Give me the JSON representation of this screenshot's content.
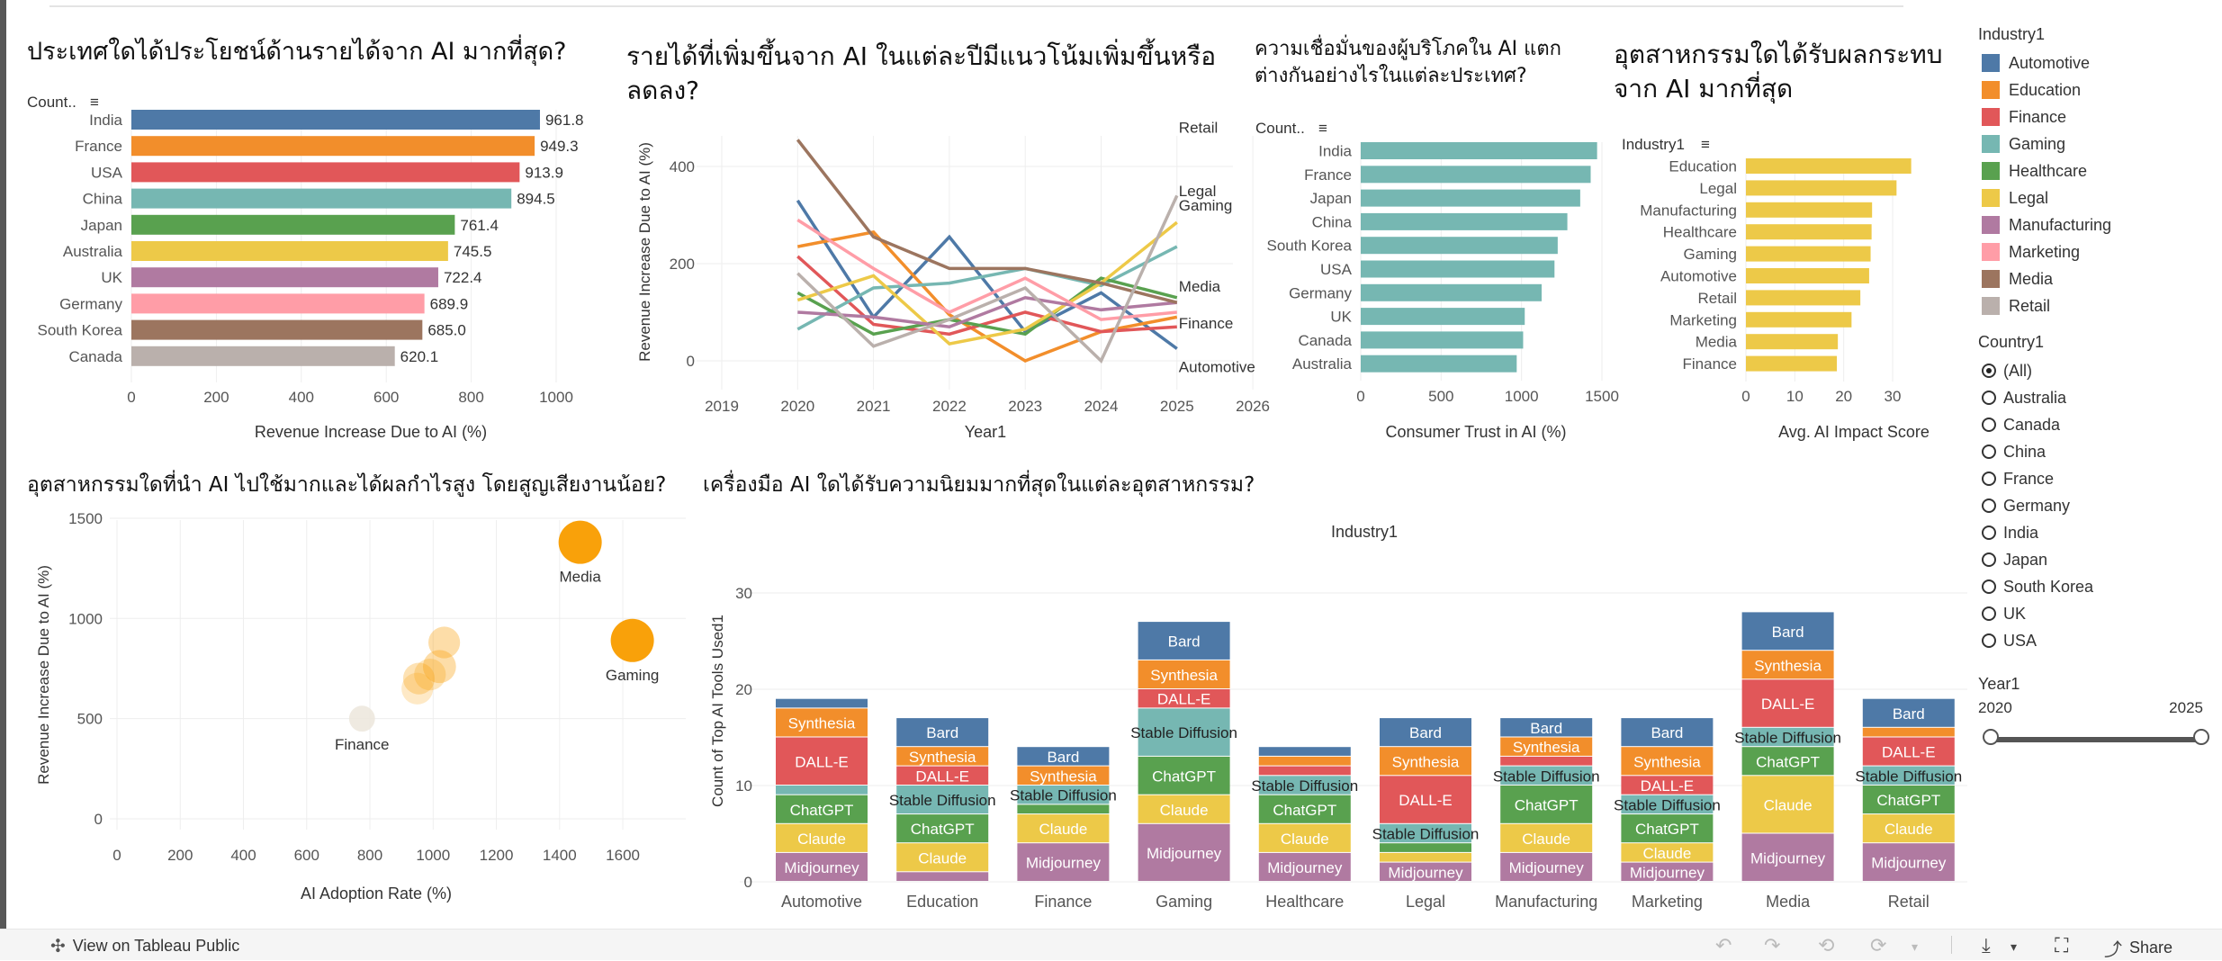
{
  "colors": {
    "Automotive": "#4e79a7",
    "Education": "#f28e2b",
    "Finance": "#e15759",
    "Gaming": "#76b7b2",
    "Healthcare": "#59a14f",
    "Legal": "#edc948",
    "Manufacturing": "#b07aa1",
    "Marketing": "#ff9da7",
    "Media": "#9c755f",
    "Retail": "#bab0ac",
    "trust": "#76b7b2",
    "bubble": "#f9a10a"
  },
  "chart1": {
    "title": "ประเทศใดได้ประโยชน์ด้านรายได้จาก AI มากที่สุด?",
    "sort_label": "Count..",
    "xlabel": "Revenue Increase Due to AI (%)",
    "ticks": [
      "0",
      "200",
      "400",
      "600",
      "800",
      "1000"
    ]
  },
  "chart2": {
    "title": "รายได้ที่เพิ่มขึ้นจาก AI ในแต่ละปีมีแนวโน้มเพิ่มขึ้นหรือลดลง?",
    "xlabel": "Year1",
    "ylabel": "Revenue Increase Due to AI (%)",
    "xticks": [
      "2019",
      "2020",
      "2021",
      "2022",
      "2023",
      "2024",
      "2025",
      "2026"
    ],
    "yticks": [
      "0",
      "200",
      "400"
    ]
  },
  "chart3": {
    "title": "ความเชื่อมั่นของผู้บริโภคใน AI แตกต่างกันอย่างไรในแต่ละประเทศ?",
    "sort_label": "Count..",
    "xlabel": "Consumer Trust in AI (%)",
    "ticks": [
      "0",
      "500",
      "1000",
      "1500"
    ]
  },
  "chart4": {
    "title": "อุตสาหกรรมใดได้รับผลกระทบจาก AI มากที่สุด",
    "sort_label": "Industry1",
    "xlabel": "Avg. AI Impact Score",
    "ticks": [
      "0",
      "10",
      "20",
      "30"
    ]
  },
  "chart5": {
    "title": "อุตสาหกรรมใดที่นำ AI ไปใช้มากและได้ผลกำไรสูง โดยสูญเสียงานน้อย?",
    "xlabel": "AI Adoption Rate (%)",
    "ylabel": "Revenue Increase Due to AI (%)",
    "xticks": [
      "0",
      "200",
      "400",
      "600",
      "800",
      "1000",
      "1200",
      "1400",
      "1600"
    ],
    "yticks": [
      "0",
      "500",
      "1000",
      "1500"
    ]
  },
  "chart6": {
    "title": "เครื่องมือ AI ใดได้รับความนิยมมากที่สุดในแต่ละอุตสาหกรรม?",
    "header": "Industry1",
    "ylabel": "Count of Top AI Tools Used1",
    "yticks": [
      "0",
      "10",
      "20",
      "30"
    ]
  },
  "legend": {
    "title": "Industry1",
    "items": [
      "Automotive",
      "Education",
      "Finance",
      "Gaming",
      "Healthcare",
      "Legal",
      "Manufacturing",
      "Marketing",
      "Media",
      "Retail"
    ]
  },
  "country_filter": {
    "title": "Country1",
    "options": [
      "(All)",
      "Australia",
      "Canada",
      "China",
      "France",
      "Germany",
      "India",
      "Japan",
      "South Korea",
      "UK",
      "USA"
    ],
    "selected": "(All)"
  },
  "year_filter": {
    "title": "Year1",
    "min": "2020",
    "max": "2025"
  },
  "toolbar": {
    "view_label": "View on Tableau Public",
    "share_label": "Share"
  },
  "chart_data": [
    {
      "type": "bar",
      "title": "ประเทศใดได้ประโยชน์ด้านรายได้จาก AI มากที่สุด?",
      "xlabel": "Revenue Increase Due to AI (%)",
      "xlim": [
        0,
        1100
      ],
      "categories": [
        "India",
        "France",
        "USA",
        "China",
        "Japan",
        "Australia",
        "UK",
        "Germany",
        "South Korea",
        "Canada"
      ],
      "values": [
        961.8,
        949.3,
        913.9,
        894.5,
        761.4,
        745.5,
        722.4,
        689.9,
        685.0,
        620.1
      ],
      "labels": [
        "961.8",
        "949.3",
        "913.9",
        "894.5",
        "761.4",
        "745.5",
        "722.4",
        "689.9",
        "685.0",
        "620.1"
      ],
      "bar_colors": [
        "Automotive",
        "Education",
        "Finance",
        "Gaming",
        "Healthcare",
        "Legal",
        "Manufacturing",
        "Marketing",
        "Media",
        "Retail"
      ]
    },
    {
      "type": "line",
      "title": "รายได้ที่เพิ่มขึ้นจาก AI ในแต่ละปีมีแนวโน้มเพิ่มขึ้นหรือลดลง?",
      "xlabel": "Year1",
      "ylabel": "Revenue Increase Due to AI (%)",
      "xlim": [
        2019,
        2026
      ],
      "ylim": [
        -20,
        480
      ],
      "x": [
        2020,
        2021,
        2022,
        2023,
        2024,
        2025
      ],
      "series": [
        {
          "name": "Automotive",
          "values": [
            330,
            90,
            255,
            60,
            140,
            25
          ]
        },
        {
          "name": "Education",
          "values": [
            235,
            265,
            95,
            0,
            60,
            90
          ]
        },
        {
          "name": "Finance",
          "values": [
            215,
            75,
            55,
            100,
            60,
            70
          ]
        },
        {
          "name": "Gaming",
          "values": [
            65,
            150,
            160,
            190,
            155,
            235
          ]
        },
        {
          "name": "Healthcare",
          "values": [
            140,
            55,
            85,
            55,
            170,
            130
          ]
        },
        {
          "name": "Legal",
          "values": [
            125,
            175,
            35,
            65,
            160,
            285
          ]
        },
        {
          "name": "Manufacturing",
          "values": [
            100,
            90,
            70,
            130,
            105,
            120
          ]
        },
        {
          "name": "Marketing",
          "values": [
            290,
            190,
            100,
            170,
            85,
            100
          ]
        },
        {
          "name": "Media",
          "values": [
            455,
            255,
            190,
            190,
            160,
            120
          ]
        },
        {
          "name": "Retail",
          "values": [
            180,
            30,
            85,
            150,
            0,
            340
          ]
        }
      ],
      "end_labels": [
        "Retail",
        "Legal",
        "Gaming",
        "Media",
        "Finance",
        "Automotive"
      ]
    },
    {
      "type": "bar",
      "title": "ความเชื่อมั่นของผู้บริโภคใน AI แตกต่างกันอย่างไรในแต่ละประเทศ?",
      "xlabel": "Consumer Trust in AI (%)",
      "xlim": [
        0,
        1600
      ],
      "categories": [
        "India",
        "France",
        "Japan",
        "China",
        "South Korea",
        "USA",
        "Germany",
        "UK",
        "Canada",
        "Australia"
      ],
      "values": [
        1470,
        1430,
        1365,
        1285,
        1225,
        1205,
        1125,
        1020,
        1010,
        970
      ]
    },
    {
      "type": "bar",
      "title": "อุตสาหกรรมใดได้รับผลกระทบจาก AI มากที่สุด",
      "xlabel": "Avg. AI Impact Score",
      "xlim": [
        0,
        35
      ],
      "categories": [
        "Education",
        "Legal",
        "Manufacturing",
        "Healthcare",
        "Gaming",
        "Automotive",
        "Retail",
        "Marketing",
        "Media",
        "Finance"
      ],
      "values": [
        33.8,
        30.8,
        25.8,
        25.7,
        25.5,
        25.2,
        23.4,
        21.6,
        18.8,
        18.6
      ]
    },
    {
      "type": "scatter",
      "title": "อุตสาหกรรมใดที่นำ AI ไปใช้มากและได้ผลกำไรสูง โดยสูญเสียงานน้อย?",
      "xlabel": "AI Adoption Rate (%)",
      "ylabel": "Revenue Increase Due to AI (%)",
      "xlim": [
        0,
        1750
      ],
      "ylim": [
        -50,
        1550
      ],
      "points": [
        {
          "label": "Media",
          "x": 1465,
          "y": 1380,
          "size": 3,
          "shade": 1.0
        },
        {
          "label": "Gaming",
          "x": 1630,
          "y": 890,
          "size": 3,
          "shade": 1.0
        },
        {
          "label": "",
          "x": 1035,
          "y": 880,
          "size": 2.2,
          "shade": 0.45
        },
        {
          "label": "",
          "x": 1020,
          "y": 760,
          "size": 2.3,
          "shade": 0.45
        },
        {
          "label": "",
          "x": 990,
          "y": 720,
          "size": 2.2,
          "shade": 0.3
        },
        {
          "label": "",
          "x": 955,
          "y": 700,
          "size": 2.2,
          "shade": 0.35
        },
        {
          "label": "",
          "x": 950,
          "y": 650,
          "size": 2.2,
          "shade": 0.2
        },
        {
          "label": "Finance",
          "x": 775,
          "y": 500,
          "size": 1.8,
          "shade": 0.1
        }
      ]
    },
    {
      "type": "bar",
      "title": "เครื่องมือ AI ใดได้รับความนิยมมากที่สุดในแต่ละอุตสาหกรรม?",
      "stacked": true,
      "ylabel": "Count of Top AI Tools Used1",
      "ylim": [
        0,
        32
      ],
      "categories": [
        "Automotive",
        "Education",
        "Finance",
        "Gaming",
        "Healthcare",
        "Legal",
        "Manufacturing",
        "Marketing",
        "Media",
        "Retail"
      ],
      "stack_order": [
        "Midjourney",
        "Claude",
        "ChatGPT",
        "Stable Diffusion",
        "DALL-E",
        "Synthesia",
        "Bard"
      ],
      "series": [
        {
          "name": "Midjourney",
          "values": [
            3,
            1,
            4,
            6,
            3,
            2,
            3,
            2,
            5,
            4
          ]
        },
        {
          "name": "Claude",
          "values": [
            3,
            3,
            3,
            3,
            3,
            1,
            3,
            2,
            6,
            3
          ]
        },
        {
          "name": "ChatGPT",
          "values": [
            3,
            3,
            1,
            4,
            3,
            1,
            4,
            3,
            3,
            3
          ]
        },
        {
          "name": "Stable Diffusion",
          "values": [
            1,
            3,
            2,
            5,
            2,
            2,
            2,
            2,
            2,
            2
          ]
        },
        {
          "name": "DALL-E",
          "values": [
            5,
            2,
            0,
            2,
            1,
            5,
            1,
            2,
            5,
            3
          ]
        },
        {
          "name": "Synthesia",
          "values": [
            3,
            2,
            2,
            3,
            1,
            3,
            2,
            3,
            3,
            1
          ]
        },
        {
          "name": "Bard",
          "values": [
            1,
            3,
            2,
            4,
            1,
            3,
            2,
            3,
            4,
            3
          ]
        }
      ],
      "segment_label_min": 2
    }
  ]
}
